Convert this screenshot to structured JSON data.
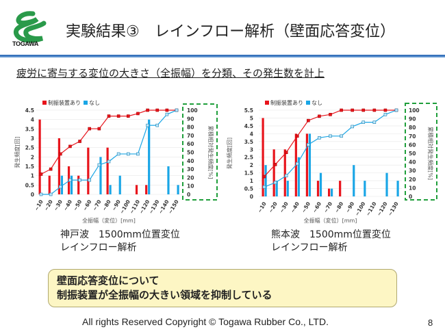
{
  "header": {
    "logo_text": "TOGAWA",
    "title": "実験結果③　レインフロー解析（壁面応答変位）",
    "accent_color": "#1f5fb0",
    "logo_color": "#2a9a4a"
  },
  "subtitle": "疲労に寄与する変位の大きさ（全振幅）を分類、その発生数を計上",
  "chart_data": [
    {
      "type": "bar",
      "categories": [
        "~10",
        "~20",
        "~30",
        "~40",
        "~50",
        "~60",
        "~70",
        "~80",
        "~90",
        "~100",
        "~110",
        "~120",
        "~130",
        "~140",
        "~150"
      ],
      "xlabel": "全振幅（変位）[mm]",
      "ylabel": "発生頻度[回]",
      "y2label": "累積相対発生頻度[%]",
      "ylim": [
        0,
        4.5
      ],
      "yticks": [
        "0",
        "0.5",
        "1",
        "1.5",
        "2",
        "2.5",
        "3",
        "3.5",
        "4",
        "4.5"
      ],
      "y2lim": [
        0,
        100
      ],
      "y2ticks": [
        "0",
        "10",
        "20",
        "30",
        "40",
        "50",
        "60",
        "70",
        "80",
        "90",
        "100"
      ],
      "legend_position": "top-left",
      "series": [
        {
          "name": "制振装置あり",
          "type": "bar",
          "color": "#e8141c",
          "values": [
            4,
            1,
            3,
            1.5,
            1,
            2.5,
            0,
            2.5,
            0,
            0,
            0.5,
            0.5,
            0,
            0,
            0
          ]
        },
        {
          "name": "なし",
          "type": "bar",
          "color": "#1aa6e6",
          "values": [
            0,
            0,
            1,
            1,
            0,
            0,
            2,
            0.5,
            1,
            0,
            0,
            4,
            0,
            1.5,
            0.5
          ]
        },
        {
          "type": "line",
          "axis": "right",
          "color": "#e8141c",
          "values": [
            24,
            30,
            48,
            57,
            63,
            78,
            78,
            93,
            93,
            93,
            96,
            100,
            100,
            100,
            100
          ]
        },
        {
          "type": "line",
          "axis": "right",
          "color": "#1aa6e6",
          "values": [
            0,
            0,
            9,
            17,
            17,
            17,
            35,
            39,
            48,
            48,
            48,
            82,
            82,
            95,
            100
          ]
        }
      ]
    },
    {
      "type": "bar",
      "categories": [
        "~10",
        "~20",
        "~30",
        "~40",
        "~50",
        "~60",
        "~70",
        "~80",
        "~90",
        "~100",
        "~110",
        "~120",
        "~130"
      ],
      "xlabel": "全振幅（変位）[mm]",
      "ylabel": "発生頻度[回]",
      "y2label": "累積相対発生頻度[%]",
      "ylim": [
        0,
        5.5
      ],
      "yticks": [
        "0",
        "0.5",
        "1",
        "1.5",
        "2",
        "2.5",
        "3",
        "3.5",
        "4",
        "4.5",
        "5",
        "5.5"
      ],
      "y2lim": [
        0,
        100
      ],
      "y2ticks": [
        "0",
        "10",
        "20",
        "30",
        "40",
        "50",
        "60",
        "70",
        "80",
        "90",
        "100"
      ],
      "legend_position": "top-left",
      "series": [
        {
          "name": "制振装置あり",
          "type": "bar",
          "color": "#e8141c",
          "values": [
            5,
            3,
            3,
            4,
            4,
            1,
            0.5,
            1,
            0,
            0,
            0,
            0,
            0
          ]
        },
        {
          "name": "なし",
          "type": "bar",
          "color": "#1aa6e6",
          "values": [
            2,
            1,
            1,
            2.5,
            4,
            1.5,
            0.5,
            0,
            2,
            1,
            0,
            1.5,
            1
          ]
        },
        {
          "type": "line",
          "axis": "right",
          "color": "#e8141c",
          "values": [
            23,
            37,
            51,
            70,
            88,
            93,
            95,
            100,
            100,
            100,
            100,
            100,
            100
          ]
        },
        {
          "type": "line",
          "axis": "right",
          "color": "#1aa6e6",
          "values": [
            11,
            16,
            24,
            38,
            60,
            68,
            70,
            70,
            81,
            86,
            86,
            95,
            100
          ]
        }
      ]
    }
  ],
  "captions": [
    {
      "line1": "神戸波　1500mm位置変位",
      "line2": "レインフロー解析"
    },
    {
      "line1": "熊本波　1500mm位置変位",
      "line2": "レインフロー解析"
    }
  ],
  "note": {
    "line1": "壁面応答変位について",
    "line2": "制振装置が全振幅の大きい領域を抑制している"
  },
  "footer": "All  rights Reserved Copyright  ©  Togawa Rubber Co., LTD.",
  "page_number": "8"
}
